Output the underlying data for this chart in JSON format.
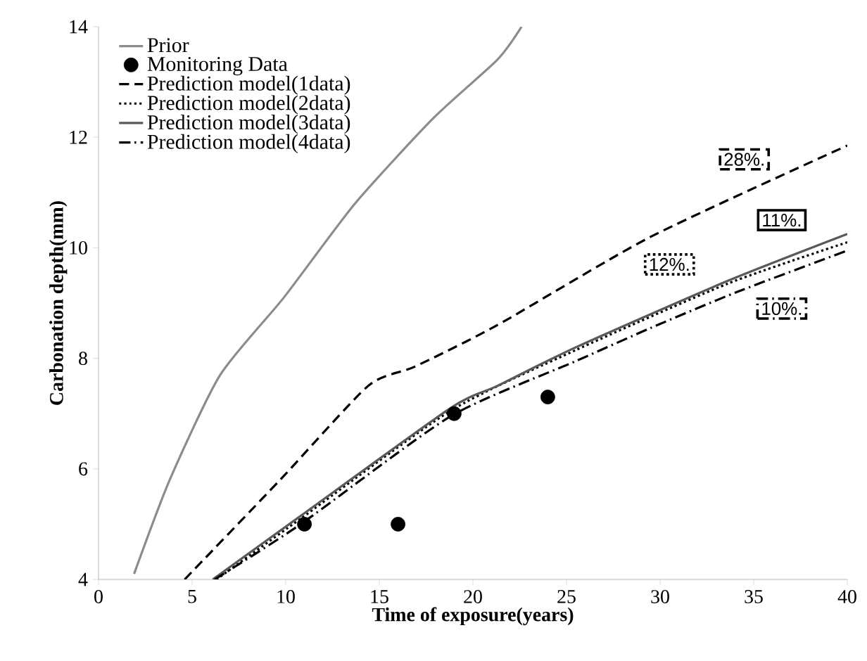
{
  "chart_data": {
    "type": "line",
    "xlabel": "Time of exposure(years)",
    "ylabel": "Carbonation depth(mm)",
    "xlim": [
      0,
      40
    ],
    "ylim": [
      4,
      14
    ],
    "xticks": [
      0,
      5,
      10,
      15,
      20,
      25,
      30,
      35,
      40
    ],
    "yticks": [
      4,
      6,
      8,
      10,
      12,
      14
    ],
    "grid": false,
    "legend": "top left",
    "series": [
      {
        "name": "Prior",
        "color": "#8c8c8c",
        "line_style": "solid",
        "marker": "none",
        "x": [
          1.9,
          3.8,
          6.5,
          9.9,
          13.7,
          17.9,
          21.3,
          22.6
        ],
        "values": [
          4.1,
          5.8,
          7.7,
          9.1,
          10.8,
          12.35,
          13.4,
          14
        ]
      },
      {
        "name": "Monitoring Data",
        "type": "scatter",
        "color": "#000000",
        "marker": "circle",
        "x": [
          11,
          16,
          19,
          24
        ],
        "values": [
          5,
          5,
          7,
          7.3
        ]
      },
      {
        "name": "Prediction model(1data)",
        "color": "#000000",
        "line_style": "dashed",
        "marker": "none",
        "x": [
          4.6,
          9.7,
          14.4,
          16.9,
          21.3,
          29.5,
          40
        ],
        "values": [
          4,
          5.8,
          7.5,
          7.85,
          8.6,
          10.2,
          11.85
        ]
      },
      {
        "name": "Prediction model(2data)",
        "color": "#000000",
        "line_style": "dotted",
        "marker": "none",
        "x": [
          6.3,
          10.8,
          18.8,
          25.5,
          33.6,
          40
        ],
        "values": [
          4,
          5.1,
          7.05,
          8.15,
          9.35,
          10.1
        ]
      },
      {
        "name": "Prediction model(3data)",
        "color": "#595959",
        "line_style": "solid",
        "marker": "none",
        "x": [
          6.1,
          10.8,
          18.8,
          21.3,
          25.5,
          33.6,
          40
        ],
        "values": [
          4,
          5.15,
          7.1,
          7.5,
          8.2,
          9.4,
          10.25
        ]
      },
      {
        "name": "Prediction model(4data)",
        "color": "#000000",
        "line_style": "dashdot",
        "marker": "none",
        "x": [
          6.2,
          10.8,
          18.8,
          25.5,
          29.5,
          34.1,
          40
        ],
        "values": [
          4,
          5.0,
          6.95,
          7.95,
          8.55,
          9.2,
          9.95
        ]
      }
    ],
    "annotations": [
      {
        "text": "28%.",
        "x": 34.5,
        "y": 11.6
      },
      {
        "text": "12%.",
        "x": 30.5,
        "y": 9.7
      },
      {
        "text": "11%.",
        "x": 36.5,
        "y": 10.5
      },
      {
        "text": "10%.",
        "x": 36.5,
        "y": 8.9
      }
    ]
  }
}
